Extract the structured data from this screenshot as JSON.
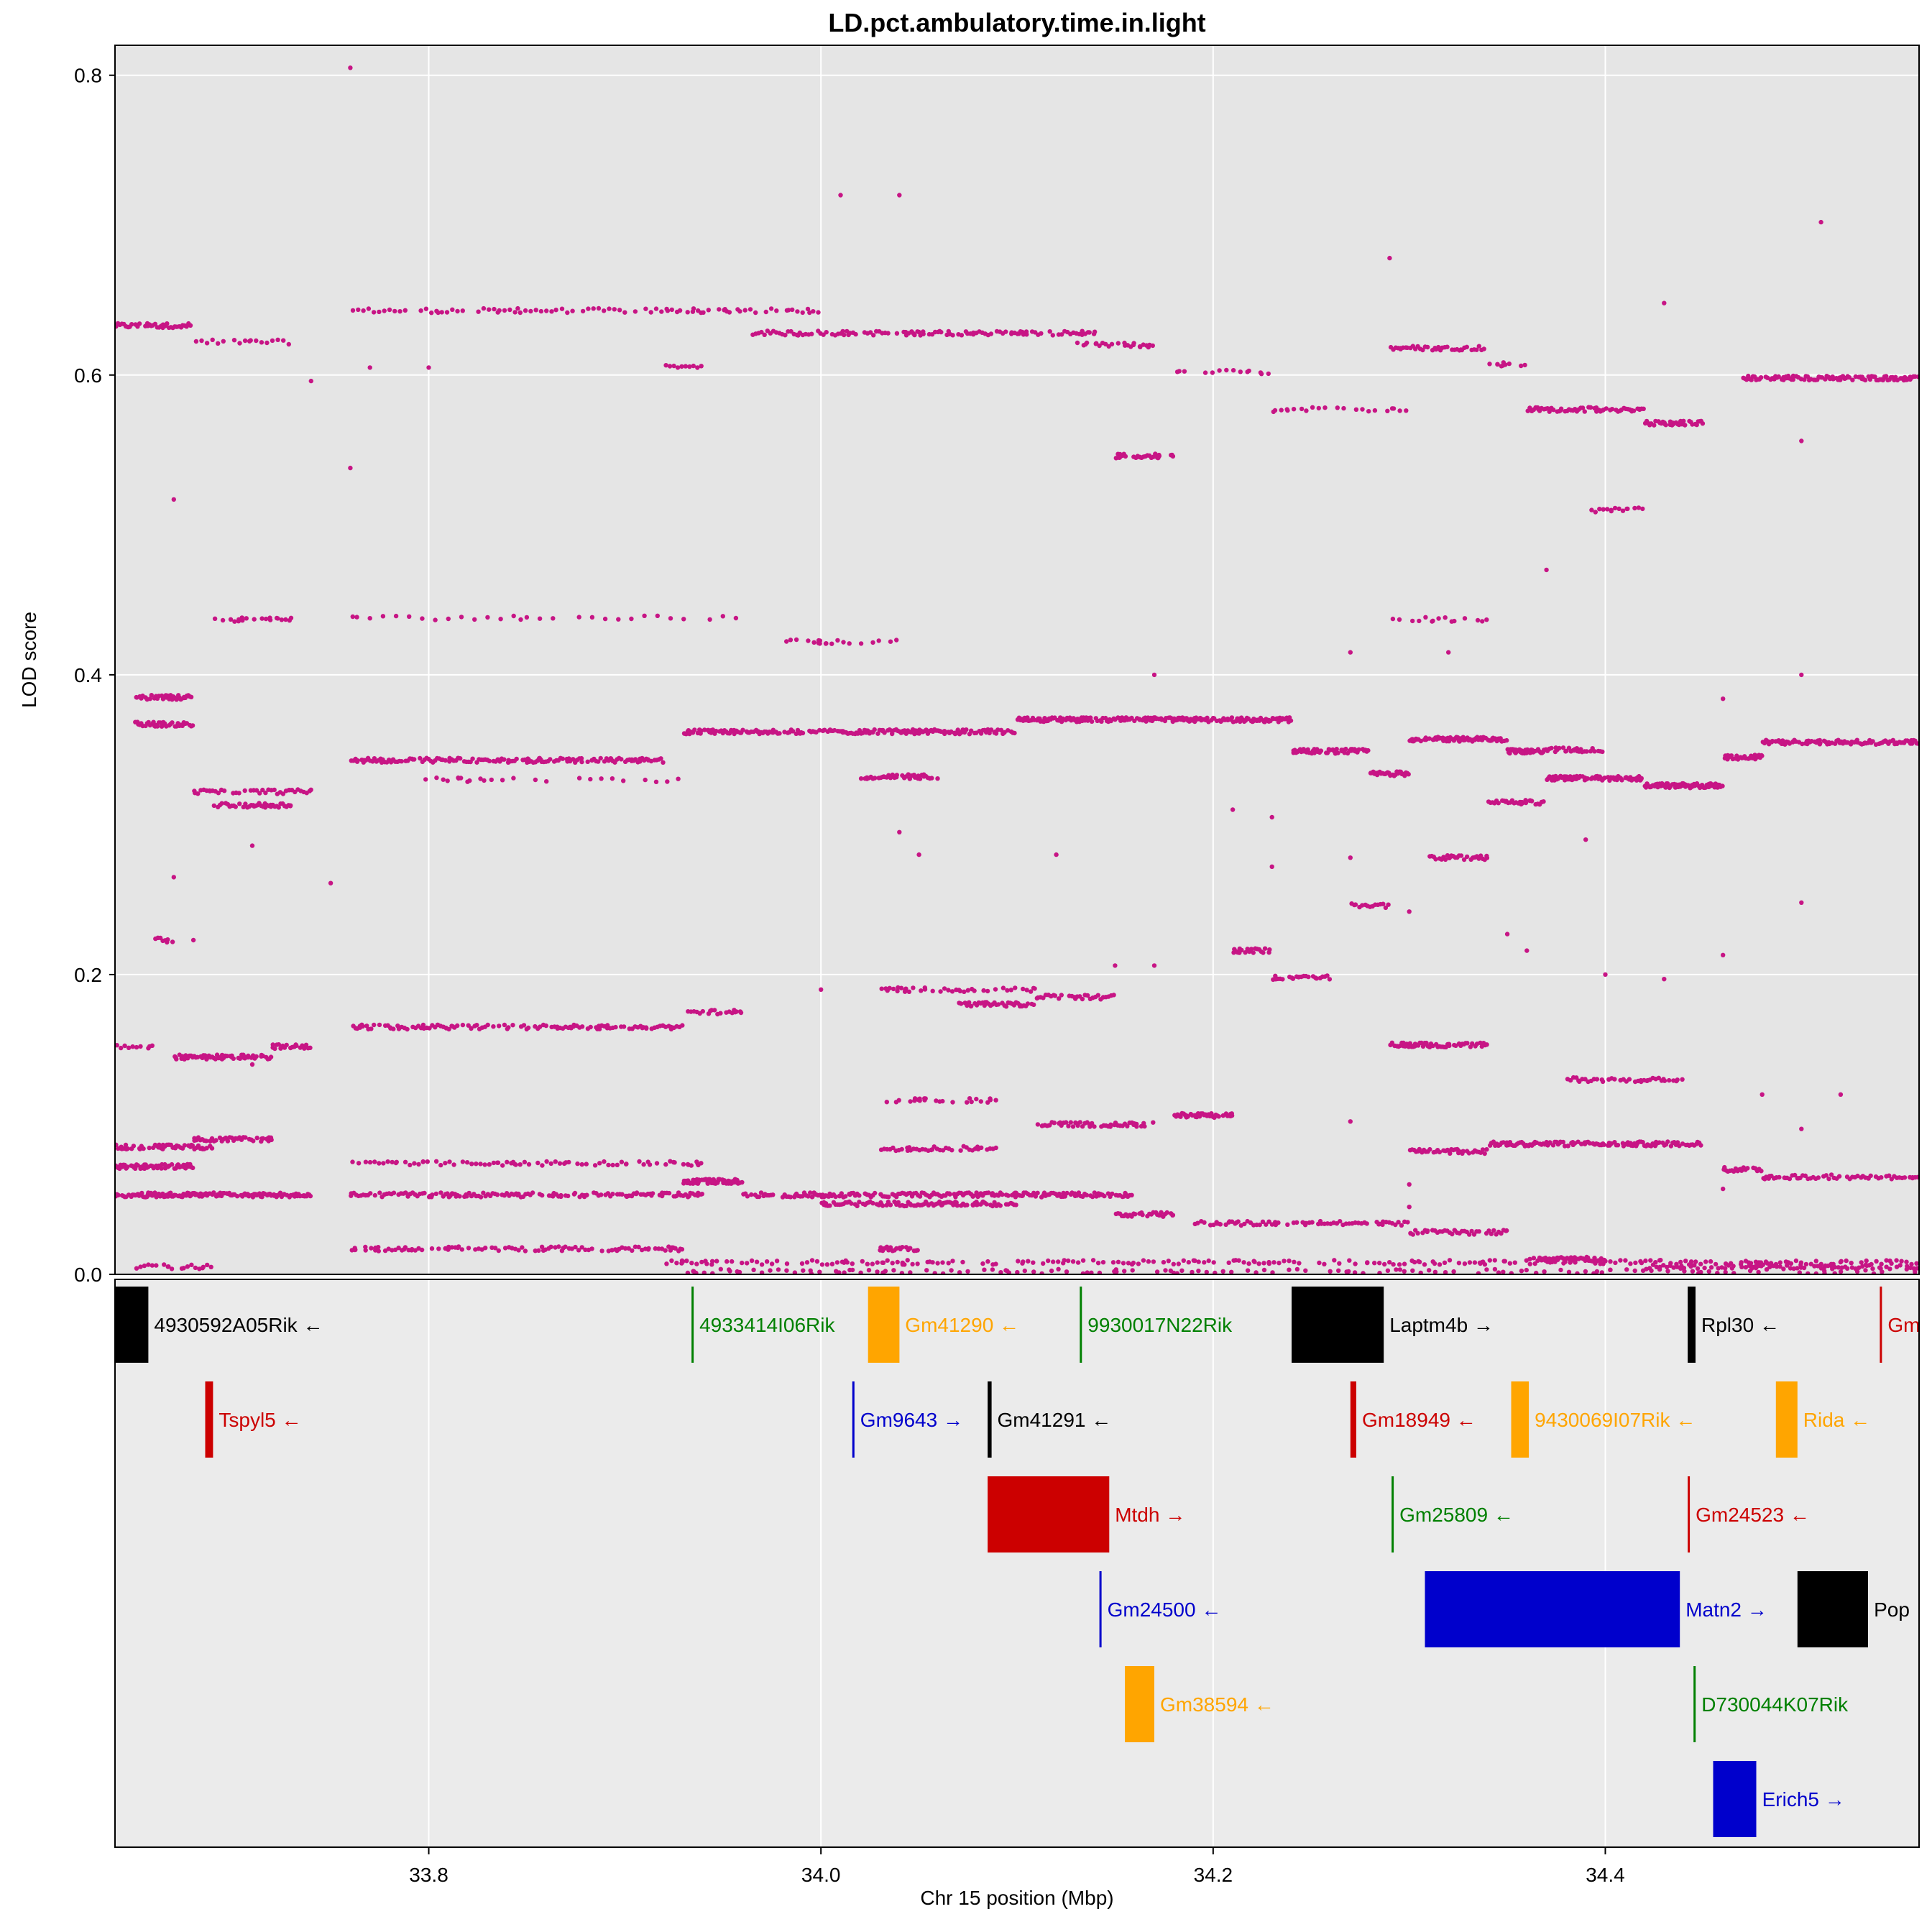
{
  "chart_data": {
    "type": "scatter",
    "title": "LD.pct.ambulatory.time.in.light",
    "xlabel": "Chr 15 position (Mbp)",
    "ylabel": "LOD score",
    "xlim": [
      33.64,
      34.56
    ],
    "ylim": [
      0,
      0.82
    ],
    "x_ticks": [
      33.8,
      34.0,
      34.2,
      34.4
    ],
    "x_tick_labels": [
      "33.8",
      "34.0",
      "34.2",
      "34.4"
    ],
    "y_ticks": [
      0,
      0.2,
      0.4,
      0.6,
      0.8
    ],
    "y_tick_labels": [
      "0.0",
      "0.2",
      "0.4",
      "0.6",
      "0.8"
    ],
    "grid": true,
    "point_color": "#c71585",
    "panel_background": "#e5e5e5",
    "bands": [
      {
        "y": 0.633,
        "x": [
          33.64,
          33.68
        ],
        "d": 40
      },
      {
        "y": 0.622,
        "x": [
          33.68,
          33.73
        ],
        "d": 18
      },
      {
        "y": 0.643,
        "x": [
          33.76,
          34.0
        ],
        "d": 90
      },
      {
        "y": 0.628,
        "x": [
          33.96,
          34.14
        ],
        "d": 120
      },
      {
        "y": 0.62,
        "x": [
          34.13,
          34.17
        ],
        "d": 25
      },
      {
        "y": 0.602,
        "x": [
          34.18,
          34.23
        ],
        "d": 14
      },
      {
        "y": 0.577,
        "x": [
          34.23,
          34.3
        ],
        "d": 22
      },
      {
        "y": 0.618,
        "x": [
          34.29,
          34.34
        ],
        "d": 40
      },
      {
        "y": 0.607,
        "x": [
          34.34,
          34.36
        ],
        "d": 10
      },
      {
        "y": 0.577,
        "x": [
          34.36,
          34.42
        ],
        "d": 60
      },
      {
        "y": 0.568,
        "x": [
          34.42,
          34.45
        ],
        "d": 40
      },
      {
        "y": 0.598,
        "x": [
          34.47,
          34.56
        ],
        "d": 110
      },
      {
        "y": 0.546,
        "x": [
          34.15,
          34.18
        ],
        "d": 30
      },
      {
        "y": 0.605,
        "x": [
          33.92,
          33.94
        ],
        "d": 10
      },
      {
        "y": 0.51,
        "x": [
          34.39,
          34.42
        ],
        "d": 15
      },
      {
        "y": 0.437,
        "x": [
          33.69,
          33.73
        ],
        "d": 20
      },
      {
        "y": 0.438,
        "x": [
          33.76,
          33.96
        ],
        "d": 30
      },
      {
        "y": 0.422,
        "x": [
          33.98,
          34.04
        ],
        "d": 20
      },
      {
        "y": 0.437,
        "x": [
          34.29,
          34.34
        ],
        "d": 15
      },
      {
        "y": 0.385,
        "x": [
          33.65,
          33.68
        ],
        "d": 40
      },
      {
        "y": 0.367,
        "x": [
          33.65,
          33.68
        ],
        "d": 40
      },
      {
        "y": 0.362,
        "x": [
          33.93,
          34.1
        ],
        "d": 200
      },
      {
        "y": 0.37,
        "x": [
          34.1,
          34.24
        ],
        "d": 200
      },
      {
        "y": 0.349,
        "x": [
          34.24,
          34.28
        ],
        "d": 60
      },
      {
        "y": 0.334,
        "x": [
          34.28,
          34.3
        ],
        "d": 30
      },
      {
        "y": 0.357,
        "x": [
          34.3,
          34.35
        ],
        "d": 80
      },
      {
        "y": 0.349,
        "x": [
          34.35,
          34.37
        ],
        "d": 40
      },
      {
        "y": 0.35,
        "x": [
          34.37,
          34.4
        ],
        "d": 30
      },
      {
        "y": 0.331,
        "x": [
          34.37,
          34.42
        ],
        "d": 80
      },
      {
        "y": 0.326,
        "x": [
          34.42,
          34.46
        ],
        "d": 80
      },
      {
        "y": 0.345,
        "x": [
          34.46,
          34.48
        ],
        "d": 30
      },
      {
        "y": 0.355,
        "x": [
          34.48,
          34.56
        ],
        "d": 100
      },
      {
        "y": 0.343,
        "x": [
          33.76,
          33.92
        ],
        "d": 150
      },
      {
        "y": 0.322,
        "x": [
          33.68,
          33.74
        ],
        "d": 40
      },
      {
        "y": 0.313,
        "x": [
          33.69,
          33.73
        ],
        "d": 40
      },
      {
        "y": 0.33,
        "x": [
          33.79,
          33.93
        ],
        "d": 25
      },
      {
        "y": 0.332,
        "x": [
          34.02,
          34.06
        ],
        "d": 40
      },
      {
        "y": 0.315,
        "x": [
          34.34,
          34.37
        ],
        "d": 30
      },
      {
        "y": 0.278,
        "x": [
          34.31,
          34.34
        ],
        "d": 30
      },
      {
        "y": 0.246,
        "x": [
          34.27,
          34.29
        ],
        "d": 15
      },
      {
        "y": 0.216,
        "x": [
          34.21,
          34.23
        ],
        "d": 20
      },
      {
        "y": 0.198,
        "x": [
          34.23,
          34.26
        ],
        "d": 25
      },
      {
        "y": 0.223,
        "x": [
          33.66,
          33.67
        ],
        "d": 8
      },
      {
        "y": 0.165,
        "x": [
          33.76,
          33.93
        ],
        "d": 120
      },
      {
        "y": 0.152,
        "x": [
          33.64,
          33.66
        ],
        "d": 10
      },
      {
        "y": 0.145,
        "x": [
          33.67,
          33.72
        ],
        "d": 60
      },
      {
        "y": 0.152,
        "x": [
          33.72,
          33.74
        ],
        "d": 20
      },
      {
        "y": 0.175,
        "x": [
          33.93,
          33.96
        ],
        "d": 20
      },
      {
        "y": 0.19,
        "x": [
          34.03,
          34.11
        ],
        "d": 40
      },
      {
        "y": 0.18,
        "x": [
          34.07,
          34.11
        ],
        "d": 40
      },
      {
        "y": 0.185,
        "x": [
          34.11,
          34.15
        ],
        "d": 30
      },
      {
        "y": 0.153,
        "x": [
          34.29,
          34.34
        ],
        "d": 60
      },
      {
        "y": 0.13,
        "x": [
          34.38,
          34.44
        ],
        "d": 40
      },
      {
        "y": 0.116,
        "x": [
          34.03,
          34.09
        ],
        "d": 25
      },
      {
        "y": 0.106,
        "x": [
          34.18,
          34.21
        ],
        "d": 40
      },
      {
        "y": 0.1,
        "x": [
          34.11,
          34.17
        ],
        "d": 50
      },
      {
        "y": 0.085,
        "x": [
          33.64,
          33.69
        ],
        "d": 50
      },
      {
        "y": 0.09,
        "x": [
          33.68,
          33.72
        ],
        "d": 40
      },
      {
        "y": 0.082,
        "x": [
          34.3,
          34.34
        ],
        "d": 40
      },
      {
        "y": 0.087,
        "x": [
          34.34,
          34.45
        ],
        "d": 130
      },
      {
        "y": 0.084,
        "x": [
          34.03,
          34.09
        ],
        "d": 40
      },
      {
        "y": 0.072,
        "x": [
          33.64,
          33.68
        ],
        "d": 60
      },
      {
        "y": 0.07,
        "x": [
          34.46,
          34.48
        ],
        "d": 20
      },
      {
        "y": 0.065,
        "x": [
          34.48,
          34.56
        ],
        "d": 60
      },
      {
        "y": 0.074,
        "x": [
          33.76,
          33.94
        ],
        "d": 80
      },
      {
        "y": 0.053,
        "x": [
          33.64,
          33.74
        ],
        "d": 150
      },
      {
        "y": 0.053,
        "x": [
          33.76,
          33.94
        ],
        "d": 150
      },
      {
        "y": 0.053,
        "x": [
          33.96,
          34.16
        ],
        "d": 200
      },
      {
        "y": 0.062,
        "x": [
          33.93,
          33.96
        ],
        "d": 60
      },
      {
        "y": 0.047,
        "x": [
          34.0,
          34.1
        ],
        "d": 100
      },
      {
        "y": 0.04,
        "x": [
          34.15,
          34.18
        ],
        "d": 30
      },
      {
        "y": 0.034,
        "x": [
          34.19,
          34.3
        ],
        "d": 70
      },
      {
        "y": 0.028,
        "x": [
          34.3,
          34.35
        ],
        "d": 40
      },
      {
        "y": 0.017,
        "x": [
          33.76,
          33.93
        ],
        "d": 100
      },
      {
        "y": 0.017,
        "x": [
          34.03,
          34.05
        ],
        "d": 20
      },
      {
        "y": 0.008,
        "x": [
          33.92,
          34.56
        ],
        "d": 250
      },
      {
        "y": 0.01,
        "x": [
          34.36,
          34.4
        ],
        "d": 40
      },
      {
        "y": 0.005,
        "x": [
          33.65,
          33.69
        ],
        "d": 20
      },
      {
        "y": 0.005,
        "x": [
          34.42,
          34.56
        ],
        "d": 80
      },
      {
        "y": 0.002,
        "x": [
          33.93,
          34.56
        ],
        "d": 150
      }
    ],
    "isolated_points": [
      [
        33.76,
        0.805
      ],
      [
        34.01,
        0.72
      ],
      [
        34.04,
        0.72
      ],
      [
        34.29,
        0.678
      ],
      [
        34.51,
        0.702
      ],
      [
        34.43,
        0.648
      ],
      [
        33.76,
        0.538
      ],
      [
        33.67,
        0.517
      ],
      [
        34.37,
        0.47
      ],
      [
        34.17,
        0.4
      ],
      [
        34.5,
        0.4
      ],
      [
        34.46,
        0.384
      ],
      [
        34.27,
        0.415
      ],
      [
        33.67,
        0.265
      ],
      [
        33.71,
        0.286
      ],
      [
        33.75,
        0.261
      ],
      [
        34.04,
        0.295
      ],
      [
        34.05,
        0.28
      ],
      [
        34.12,
        0.28
      ],
      [
        34.23,
        0.305
      ],
      [
        34.27,
        0.278
      ],
      [
        34.3,
        0.242
      ],
      [
        34.5,
        0.248
      ],
      [
        34.39,
        0.29
      ],
      [
        34.23,
        0.272
      ],
      [
        34.21,
        0.31
      ],
      [
        34.4,
        0.2
      ],
      [
        34.43,
        0.197
      ],
      [
        34.46,
        0.213
      ],
      [
        34.36,
        0.216
      ],
      [
        34.35,
        0.227
      ],
      [
        34.0,
        0.19
      ],
      [
        34.15,
        0.206
      ],
      [
        34.17,
        0.206
      ],
      [
        33.68,
        0.223
      ],
      [
        33.71,
        0.14
      ],
      [
        34.5,
        0.097
      ],
      [
        34.46,
        0.057
      ],
      [
        34.48,
        0.12
      ],
      [
        34.52,
        0.12
      ],
      [
        33.8,
        0.605
      ],
      [
        33.77,
        0.605
      ],
      [
        33.74,
        0.596
      ],
      [
        34.5,
        0.556
      ],
      [
        34.32,
        0.415
      ],
      [
        34.27,
        0.102
      ],
      [
        34.3,
        0.06
      ],
      [
        34.3,
        0.045
      ]
    ],
    "genes": [
      {
        "name": "4930592A05Rik",
        "arrow": "←",
        "start": 33.625,
        "end": 33.657,
        "row": 0,
        "color": "#000000"
      },
      {
        "name": "4933414I06Rik",
        "arrow": "",
        "start": 33.934,
        "end": 33.935,
        "row": 0,
        "color": "#008000"
      },
      {
        "name": "Gm41290",
        "arrow": "←",
        "start": 34.024,
        "end": 34.04,
        "row": 0,
        "color": "#ffa500"
      },
      {
        "name": "9930017N22Rik",
        "arrow": "",
        "start": 34.132,
        "end": 34.133,
        "row": 0,
        "color": "#008000"
      },
      {
        "name": "Laptm4b",
        "arrow": "→",
        "start": 34.24,
        "end": 34.287,
        "row": 0,
        "color": "#000000"
      },
      {
        "name": "Rpl30",
        "arrow": "←",
        "start": 34.442,
        "end": 34.446,
        "row": 0,
        "color": "#000000"
      },
      {
        "name": "Gm",
        "arrow": "",
        "start": 34.54,
        "end": 34.541,
        "row": 0,
        "color": "#cc0000"
      },
      {
        "name": "Tspyl5",
        "arrow": "←",
        "start": 33.686,
        "end": 33.69,
        "row": 1,
        "color": "#cc0000"
      },
      {
        "name": "Gm9643",
        "arrow": "→",
        "start": 34.016,
        "end": 34.017,
        "row": 1,
        "color": "#0000cc"
      },
      {
        "name": "Gm41291",
        "arrow": "←",
        "start": 34.085,
        "end": 34.087,
        "row": 1,
        "color": "#000000"
      },
      {
        "name": "Gm18949",
        "arrow": "←",
        "start": 34.27,
        "end": 34.273,
        "row": 1,
        "color": "#cc0000"
      },
      {
        "name": "9430069I07Rik",
        "arrow": "←",
        "start": 34.352,
        "end": 34.361,
        "row": 1,
        "color": "#ffa500"
      },
      {
        "name": "Rida",
        "arrow": "←",
        "start": 34.487,
        "end": 34.498,
        "row": 1,
        "color": "#ffa500"
      },
      {
        "name": "Mtdh",
        "arrow": "→",
        "start": 34.085,
        "end": 34.147,
        "row": 2,
        "color": "#cc0000"
      },
      {
        "name": "Gm25809",
        "arrow": "←",
        "start": 34.291,
        "end": 34.292,
        "row": 2,
        "color": "#008000"
      },
      {
        "name": "Gm24523",
        "arrow": "←",
        "start": 34.442,
        "end": 34.443,
        "row": 2,
        "color": "#cc0000"
      },
      {
        "name": "Gm24500",
        "arrow": "←",
        "start": 34.142,
        "end": 34.143,
        "row": 3,
        "color": "#0000cc"
      },
      {
        "name": "Matn2",
        "arrow": "→",
        "start": 34.308,
        "end": 34.438,
        "row": 3,
        "color": "#0000cc"
      },
      {
        "name": "Pop",
        "arrow": "",
        "start": 34.498,
        "end": 34.534,
        "row": 3,
        "color": "#000000"
      },
      {
        "name": "Gm38594",
        "arrow": "←",
        "start": 34.155,
        "end": 34.17,
        "row": 4,
        "color": "#ffa500"
      },
      {
        "name": "D730044K07Rik",
        "arrow": "",
        "start": 34.445,
        "end": 34.446,
        "row": 4,
        "color": "#008000"
      },
      {
        "name": "Erich5",
        "arrow": "→",
        "start": 34.455,
        "end": 34.477,
        "row": 5,
        "color": "#0000cc"
      }
    ]
  }
}
